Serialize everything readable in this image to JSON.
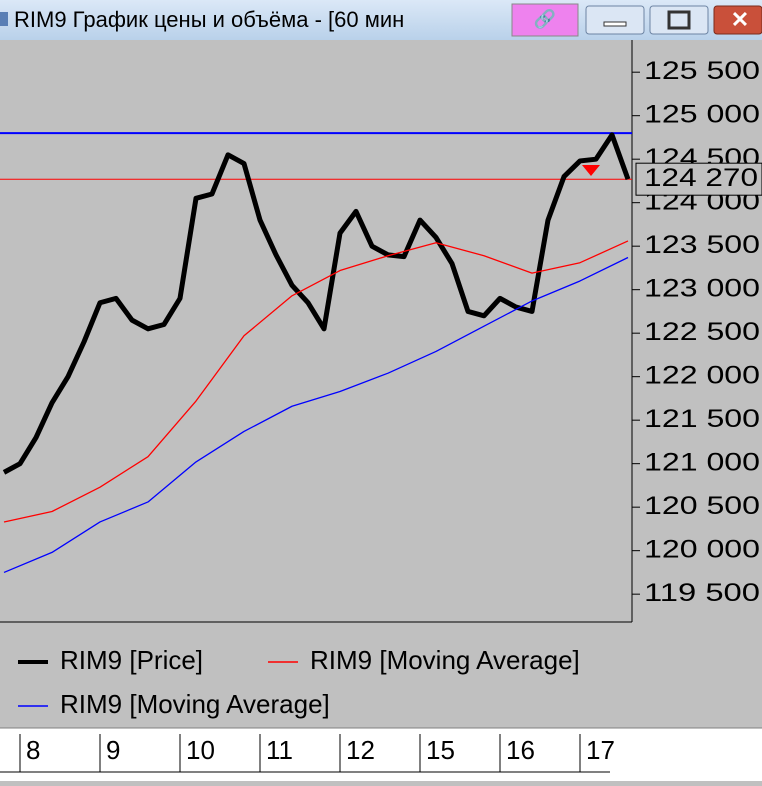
{
  "window_title": "RIM9 График цены и объёма - [60 мин",
  "chart_data": {
    "type": "line",
    "series": [
      {
        "name": "RIM9 [Price]",
        "color": "#000000",
        "values": [
          120900,
          121000,
          121300,
          121700,
          122000,
          122400,
          122850,
          122900,
          122650,
          122550,
          122600,
          122900,
          124050,
          124100,
          124550,
          124450,
          123800,
          123400,
          123050,
          122850,
          122550,
          123650,
          123900,
          123500,
          123400,
          123380,
          123800,
          123600,
          123300,
          122750,
          122700,
          122900,
          122800,
          122750,
          123800,
          124300,
          124480,
          124500,
          124780,
          124270
        ]
      },
      {
        "name": "RIM9 [Moving Average]",
        "color": "#ff0000",
        "values": [
          120330,
          120450,
          120730,
          121080,
          121720,
          122470,
          122930,
          123220,
          123390,
          123540,
          123390,
          123190,
          123310,
          123560
        ]
      },
      {
        "name": "RIM9 [Moving Average]",
        "color": "#0000ff",
        "values": [
          119750,
          119980,
          120330,
          120560,
          121020,
          121370,
          121660,
          121830,
          122040,
          122290,
          122580,
          122870,
          123100,
          123370
        ]
      }
    ],
    "levels": [
      {
        "value": 124800,
        "color": "#0000ff"
      },
      {
        "value": 124270,
        "color": "#ff0000",
        "label": "124 270"
      }
    ],
    "ylim": [
      119180,
      125870
    ],
    "yticks": [
      {
        "value": 119500,
        "label": "119 500"
      },
      {
        "value": 120000,
        "label": "120 000"
      },
      {
        "value": 120500,
        "label": "120 500"
      },
      {
        "value": 121000,
        "label": "121 000"
      },
      {
        "value": 121500,
        "label": "121 500"
      },
      {
        "value": 122000,
        "label": "122 000"
      },
      {
        "value": 122500,
        "label": "122 500"
      },
      {
        "value": 123000,
        "label": "123 000"
      },
      {
        "value": 123500,
        "label": "123 500"
      },
      {
        "value": 124000,
        "label": "124 000"
      },
      {
        "value": 124500,
        "label": "124 500"
      },
      {
        "value": 125000,
        "label": "125 000"
      },
      {
        "value": 125500,
        "label": "125 500"
      }
    ],
    "x_labels": [
      "8",
      "9",
      "10",
      "11",
      "12",
      "15",
      "16",
      "17"
    ]
  }
}
